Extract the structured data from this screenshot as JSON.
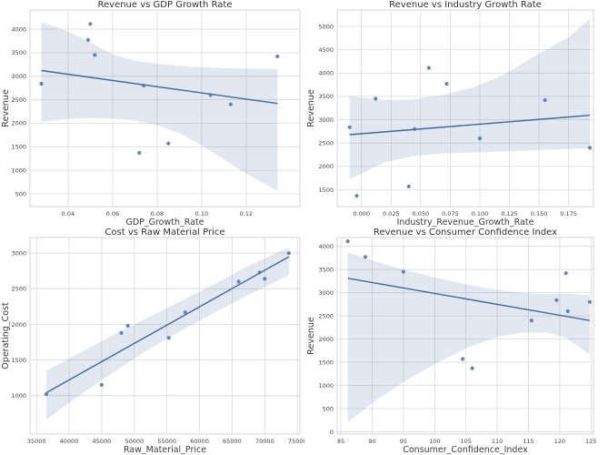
{
  "figure": {
    "background": "#ffffff",
    "description": "2x2 grid of seaborn-style regression scatter plots"
  },
  "styles": {
    "point_color": "#5379af",
    "point_opacity": 0.9,
    "line_color": "#44679f",
    "band_color": "#4c72b0",
    "band_opacity": 0.16,
    "grid_color": "#dadada",
    "spine_color": "#cccccc",
    "title_color": "#333333",
    "label_color": "#3d3d3d",
    "tick_color": "#444444"
  },
  "chart_data": [
    {
      "type": "scatter",
      "title": "Revenue vs GDP Growth Rate",
      "xlabel": "GDP_Growth_Rate",
      "ylabel": "Revenue",
      "grid": true,
      "x": [
        0.028,
        0.05,
        0.049,
        0.052,
        0.072,
        0.074,
        0.085,
        0.104,
        0.113,
        0.134
      ],
      "y": [
        2840,
        4110,
        3770,
        3450,
        1370,
        2800,
        1570,
        2600,
        2400,
        3420
      ],
      "regression_line": {
        "x": [
          0.028,
          0.134
        ],
        "y": [
          3120,
          2420
        ]
      },
      "confidence_band": {
        "x": [
          0.028,
          0.04,
          0.05,
          0.06,
          0.07,
          0.08,
          0.09,
          0.1,
          0.11,
          0.12,
          0.134
        ],
        "hi": [
          4150,
          3950,
          3720,
          3460,
          3330,
          3260,
          3220,
          3190,
          3170,
          3160,
          3150
        ],
        "lo": [
          2030,
          2090,
          2110,
          2100,
          2060,
          1960,
          1790,
          1530,
          1230,
          930,
          560
        ]
      },
      "xlim": [
        0.0229,
        0.1441
      ],
      "ylim": [
        229,
        4406
      ],
      "xticks": [
        0.04,
        0.06,
        0.08,
        0.1,
        0.12
      ],
      "xtick_labels": [
        "0.04",
        "0.06",
        "0.08",
        "0.10",
        "0.12"
      ],
      "yticks": [
        500,
        1000,
        1500,
        2000,
        2500,
        3000,
        3500,
        4000
      ],
      "ytick_labels": [
        "500",
        "1000",
        "1500",
        "2000",
        "2500",
        "3000",
        "3500",
        "4000"
      ]
    },
    {
      "type": "scatter",
      "title": "Revenue vs Industry Growth Rate",
      "xlabel": "Industry_Revenue_Growth_Rate",
      "ylabel": "Revenue",
      "grid": true,
      "x": [
        -0.01,
        -0.004,
        0.012,
        0.04,
        0.045,
        0.057,
        0.072,
        0.1,
        0.155,
        0.193
      ],
      "y": [
        2840,
        1370,
        3450,
        1570,
        2800,
        4110,
        3770,
        2600,
        3420,
        2400
      ],
      "regression_line": {
        "x": [
          -0.01,
          0.193
        ],
        "y": [
          2680,
          3095
        ]
      },
      "confidence_band": {
        "x": [
          -0.01,
          0.02,
          0.045,
          0.07,
          0.095,
          0.12,
          0.15,
          0.175,
          0.193
        ],
        "hi": [
          3500,
          3420,
          3440,
          3540,
          3700,
          3960,
          4420,
          4760,
          5160
        ],
        "lo": [
          1730,
          2090,
          2230,
          2280,
          2300,
          2320,
          2350,
          2370,
          2390
        ]
      },
      "xlim": [
        -0.0205,
        0.196
      ],
      "ylim": [
        1140,
        5350
      ],
      "xticks": [
        0.0,
        0.025,
        0.05,
        0.075,
        0.1,
        0.125,
        0.15,
        0.175
      ],
      "xtick_labels": [
        "0.000",
        "0.025",
        "0.050",
        "0.075",
        "0.100",
        "0.125",
        "0.150",
        "0.175"
      ],
      "yticks": [
        1500,
        2000,
        2500,
        3000,
        3500,
        4000,
        4500,
        5000
      ],
      "ytick_labels": [
        "1500",
        "2000",
        "2500",
        "3000",
        "3500",
        "4000",
        "4500",
        "5000"
      ]
    },
    {
      "type": "scatter",
      "title": "Cost vs Raw Material Price",
      "xlabel": "Raw_Material_Price",
      "ylabel": "Operating_Cost",
      "grid": true,
      "x": [
        36500,
        45000,
        48000,
        49000,
        55300,
        57800,
        66000,
        69200,
        70000,
        73700
      ],
      "y": [
        1020,
        1150,
        1880,
        1980,
        1810,
        2170,
        2600,
        2730,
        2640,
        3000
      ],
      "regression_line": {
        "x": [
          36500,
          73700
        ],
        "y": [
          1040,
          2950
        ]
      },
      "confidence_band": {
        "x": [
          36500,
          42000,
          47000,
          52000,
          57000,
          62000,
          67000,
          71000,
          73700
        ],
        "hi": [
          1350,
          1620,
          1860,
          2090,
          2320,
          2550,
          2800,
          2970,
          3080
        ],
        "lo": [
          660,
          1030,
          1340,
          1640,
          1900,
          2150,
          2390,
          2570,
          2690
        ]
      },
      "xlim": [
        34000,
        75390
      ],
      "ylim": [
        460,
        3220
      ],
      "xticks": [
        35000,
        40000,
        45000,
        50000,
        55000,
        60000,
        65000,
        70000,
        75000
      ],
      "xtick_labels": [
        "35000",
        "40000",
        "45000",
        "50000",
        "55000",
        "60000",
        "65000",
        "70000",
        "75000"
      ],
      "yticks": [
        1000,
        1500,
        2000,
        2500,
        3000
      ],
      "ytick_labels": [
        "1000",
        "1500",
        "2000",
        "2500",
        "3000"
      ]
    },
    {
      "type": "scatter",
      "title": "Revenue vs Consumer Confidence Index",
      "xlabel": "Consumer_Confidence_Index",
      "ylabel": "Revenue",
      "grid": true,
      "x": [
        86.1,
        88.9,
        95.0,
        104.5,
        106.0,
        115.5,
        119.5,
        121.0,
        121.3,
        124.8
      ],
      "y": [
        4110,
        3770,
        3450,
        1570,
        1370,
        2400,
        2840,
        3420,
        2600,
        2800
      ],
      "regression_line": {
        "x": [
          86.1,
          124.8
        ],
        "y": [
          3310,
          2400
        ]
      },
      "confidence_band": {
        "x": [
          86.1,
          90,
          95,
          100,
          105,
          110,
          114,
          118,
          121,
          124.8
        ],
        "hi": [
          3870,
          3700,
          3500,
          3330,
          3180,
          3060,
          3000,
          2970,
          2980,
          2950
        ],
        "lo": [
          200,
          620,
          1070,
          1460,
          1800,
          2050,
          2140,
          2140,
          2030,
          1660
        ]
      },
      "xlim": [
        84.4,
        125.4
      ],
      "ylim": [
        -50,
        4190
      ],
      "xticks": [
        85,
        90,
        95,
        100,
        105,
        110,
        115,
        120,
        125
      ],
      "xtick_labels": [
        "85",
        "90",
        "95",
        "100",
        "105",
        "110",
        "115",
        "120",
        "125"
      ],
      "yticks": [
        0,
        500,
        1000,
        1500,
        2000,
        2500,
        3000,
        3500,
        4000
      ],
      "ytick_labels": [
        "0",
        "500",
        "1000",
        "1500",
        "2000",
        "2500",
        "3000",
        "3500",
        "4000"
      ]
    }
  ]
}
